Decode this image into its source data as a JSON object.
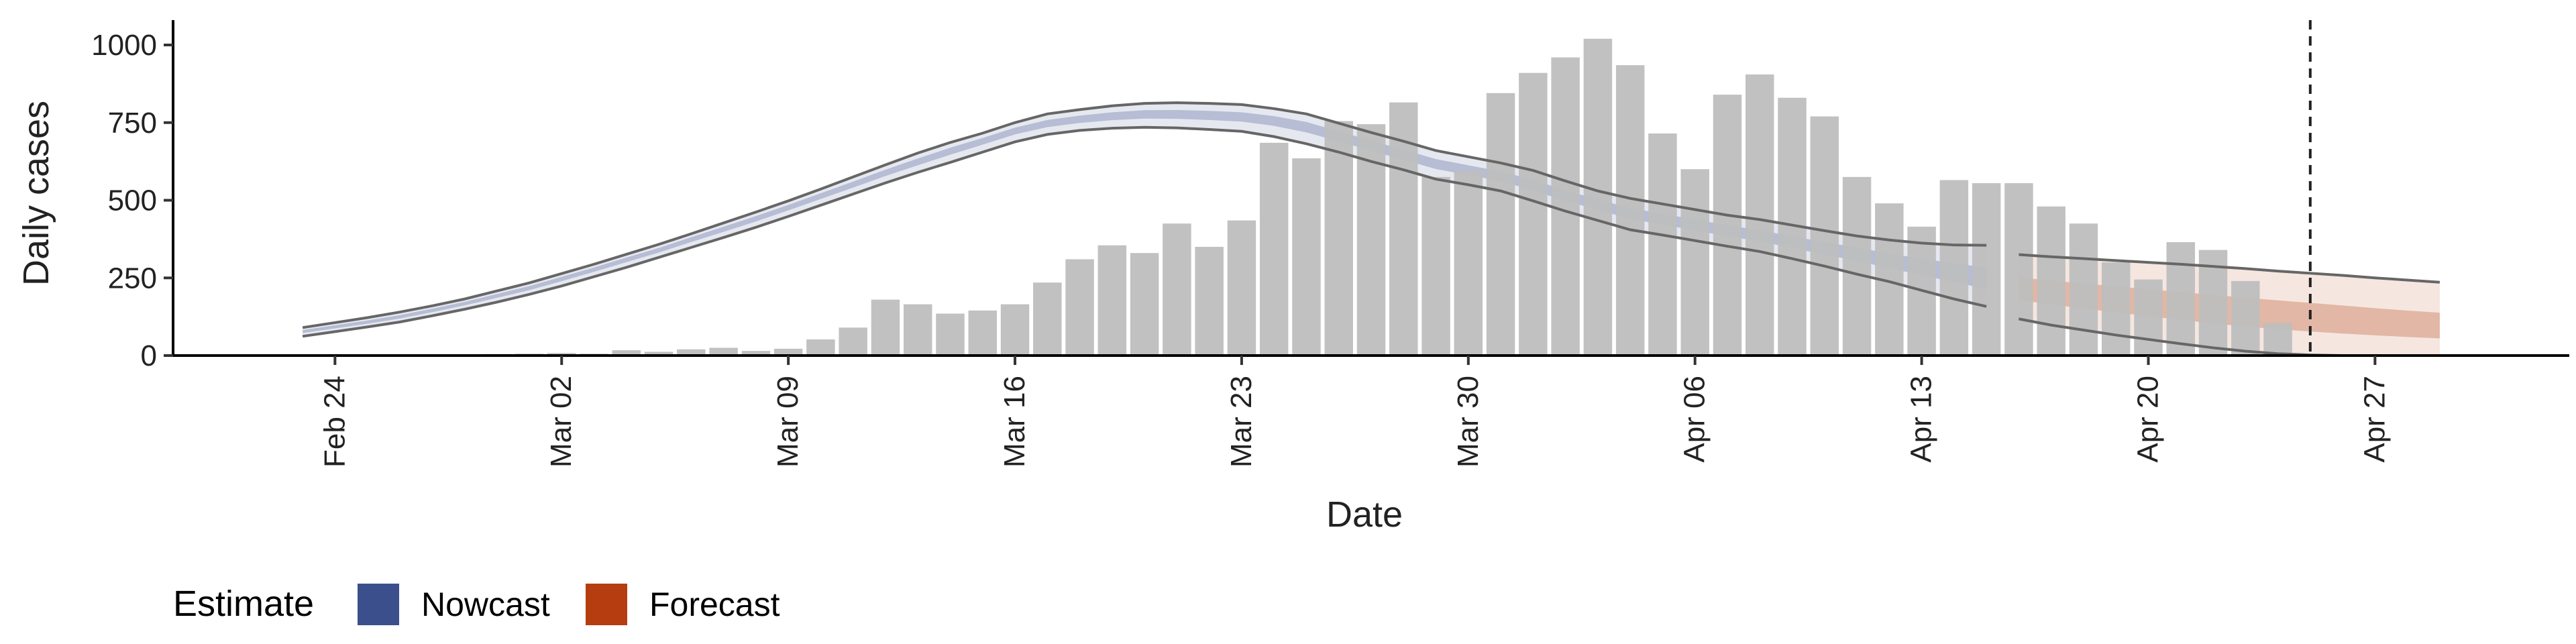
{
  "chart_data": {
    "type": "bar",
    "xlabel": "Date",
    "ylabel": "Daily cases",
    "ylim": [
      0,
      1080
    ],
    "yticks": [
      0,
      250,
      500,
      750,
      1000
    ],
    "ytick_labels": [
      "0",
      "250",
      "500",
      "750",
      "1000"
    ],
    "xticks": [
      {
        "date": "2020-02-24",
        "label": "Feb 24"
      },
      {
        "date": "2020-03-02",
        "label": "Mar 02"
      },
      {
        "date": "2020-03-09",
        "label": "Mar 09"
      },
      {
        "date": "2020-03-16",
        "label": "Mar 16"
      },
      {
        "date": "2020-03-23",
        "label": "Mar 23"
      },
      {
        "date": "2020-03-30",
        "label": "Mar 30"
      },
      {
        "date": "2020-04-06",
        "label": "Apr 06"
      },
      {
        "date": "2020-04-13",
        "label": "Apr 13"
      },
      {
        "date": "2020-04-20",
        "label": "Apr 20"
      },
      {
        "date": "2020-04-27",
        "label": "Apr 27"
      }
    ],
    "xlim": [
      "2020-02-19",
      "2020-05-03"
    ],
    "grid": false,
    "legend_position": "bottom-left",
    "reference_line_date": "2020-04-25",
    "colors": {
      "bars": "#bebebe",
      "nowcast": "#3b4f8c",
      "forecast": "#b53d0f",
      "bound_line": "#666666",
      "reference_line": "#222222"
    },
    "reported_cases": {
      "dates": [
        "2020-02-23",
        "2020-02-24",
        "2020-02-25",
        "2020-02-26",
        "2020-02-27",
        "2020-02-28",
        "2020-02-29",
        "2020-03-01",
        "2020-03-02",
        "2020-03-03",
        "2020-03-04",
        "2020-03-05",
        "2020-03-06",
        "2020-03-07",
        "2020-03-08",
        "2020-03-09",
        "2020-03-10",
        "2020-03-11",
        "2020-03-12",
        "2020-03-13",
        "2020-03-14",
        "2020-03-15",
        "2020-03-16",
        "2020-03-17",
        "2020-03-18",
        "2020-03-19",
        "2020-03-20",
        "2020-03-21",
        "2020-03-22",
        "2020-03-23",
        "2020-03-24",
        "2020-03-25",
        "2020-03-26",
        "2020-03-27",
        "2020-03-28",
        "2020-03-29",
        "2020-03-30",
        "2020-03-31",
        "2020-04-01",
        "2020-04-02",
        "2020-04-03",
        "2020-04-04",
        "2020-04-05",
        "2020-04-06",
        "2020-04-07",
        "2020-04-08",
        "2020-04-09",
        "2020-04-10",
        "2020-04-11",
        "2020-04-12",
        "2020-04-13",
        "2020-04-14",
        "2020-04-15",
        "2020-04-16",
        "2020-04-17",
        "2020-04-18",
        "2020-04-19",
        "2020-04-20",
        "2020-04-21",
        "2020-04-22",
        "2020-04-23"
      ],
      "values": [
        1,
        2,
        0,
        1,
        3,
        3,
        5,
        6,
        8,
        6,
        17,
        12,
        20,
        25,
        15,
        22,
        52,
        90,
        180,
        165,
        135,
        145,
        165,
        235,
        310,
        355,
        330,
        425,
        350,
        435,
        685,
        635,
        755,
        745,
        815,
        575,
        595,
        845,
        910,
        960,
        1020,
        935,
        715,
        600,
        840,
        905,
        830,
        770,
        575,
        490,
        415,
        565,
        555,
        555,
        480,
        425,
        300,
        245,
        365,
        340,
        240
      ],
      "extra_dates": [
        "2020-04-24"
      ],
      "extra_values": [
        105
      ]
    },
    "series": [
      {
        "name": "Nowcast",
        "dates": [
          "2020-02-23",
          "2020-02-24",
          "2020-02-25",
          "2020-02-26",
          "2020-02-27",
          "2020-02-28",
          "2020-02-29",
          "2020-03-01",
          "2020-03-02",
          "2020-03-03",
          "2020-03-04",
          "2020-03-05",
          "2020-03-06",
          "2020-03-07",
          "2020-03-08",
          "2020-03-09",
          "2020-03-10",
          "2020-03-11",
          "2020-03-12",
          "2020-03-13",
          "2020-03-14",
          "2020-03-15",
          "2020-03-16",
          "2020-03-17",
          "2020-03-18",
          "2020-03-19",
          "2020-03-20",
          "2020-03-21",
          "2020-03-22",
          "2020-03-23",
          "2020-03-24",
          "2020-03-25",
          "2020-03-26",
          "2020-03-27",
          "2020-03-28",
          "2020-03-29",
          "2020-03-30",
          "2020-03-31",
          "2020-04-01",
          "2020-04-02",
          "2020-04-03",
          "2020-04-04",
          "2020-04-05",
          "2020-04-06",
          "2020-04-07",
          "2020-04-08",
          "2020-04-09",
          "2020-04-10",
          "2020-04-11",
          "2020-04-12",
          "2020-04-13",
          "2020-04-14",
          "2020-04-15"
        ],
        "median": [
          78,
          93,
          108,
          125,
          146,
          168,
          193,
          218,
          248,
          278,
          310,
          340,
          375,
          408,
          442,
          478,
          515,
          552,
          590,
          625,
          660,
          692,
          725,
          748,
          762,
          772,
          778,
          778,
          775,
          770,
          758,
          738,
          708,
          678,
          648,
          618,
          598,
          578,
          550,
          515,
          488,
          458,
          440,
          420,
          402,
          385,
          365,
          345,
          328,
          305,
          285,
          265,
          245
        ],
        "lower": [
          62,
          77,
          92,
          108,
          128,
          149,
          172,
          197,
          224,
          254,
          284,
          316,
          348,
          380,
          413,
          448,
          484,
          520,
          556,
          590,
          622,
          655,
          688,
          712,
          725,
          732,
          735,
          733,
          728,
          722,
          705,
          682,
          655,
          625,
          598,
          568,
          550,
          530,
          498,
          465,
          435,
          405,
          388,
          370,
          352,
          335,
          312,
          288,
          262,
          238,
          210,
          182,
          158
        ],
        "upper": [
          90,
          106,
          122,
          140,
          160,
          182,
          208,
          234,
          264,
          294,
          326,
          358,
          392,
          427,
          462,
          498,
          536,
          575,
          614,
          652,
          686,
          716,
          750,
          778,
          792,
          804,
          812,
          814,
          812,
          808,
          795,
          778,
          748,
          718,
          690,
          660,
          640,
          620,
          596,
          562,
          530,
          506,
          488,
          470,
          452,
          438,
          420,
          402,
          385,
          372,
          362,
          356,
          355
        ]
      },
      {
        "name": "Forecast",
        "dates": [
          "2020-04-16",
          "2020-04-17",
          "2020-04-18",
          "2020-04-19",
          "2020-04-20",
          "2020-04-21",
          "2020-04-22",
          "2020-04-23",
          "2020-04-24",
          "2020-04-25",
          "2020-04-26",
          "2020-04-27",
          "2020-04-28",
          "2020-04-29"
        ],
        "median": [
          212,
          200,
          189,
          178,
          167,
          156,
          146,
          136,
          127,
          118,
          109,
          100,
          92,
          85
        ],
        "lower": [
          118,
          98,
          82,
          66,
          52,
          38,
          25,
          14,
          6,
          2,
          0,
          0,
          0,
          0
        ],
        "upper": [
          325,
          318,
          312,
          306,
          300,
          294,
          287,
          280,
          272,
          265,
          258,
          250,
          243,
          236
        ]
      }
    ],
    "legend": {
      "title": "Estimate",
      "items": [
        {
          "label": "Nowcast",
          "color": "#3b4f8c"
        },
        {
          "label": "Forecast",
          "color": "#b53d0f"
        }
      ]
    }
  }
}
